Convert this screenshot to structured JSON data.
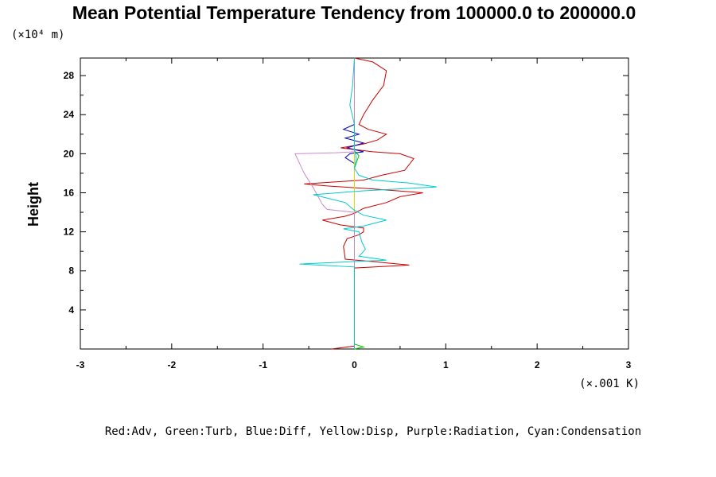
{
  "chart_data": {
    "type": "line",
    "title": "Mean Potential Temperature Tendency from 100000.0 to 200000.0",
    "y_unit_label": "(×10⁴ m)",
    "ylabel": "Height",
    "x_unit_label": "(×.001 K)",
    "legend_text": "Red:Adv, Green:Turb, Blue:Diff, Yellow:Disp, Purple:Radiation, Cyan:Condensation",
    "xlim": [
      -3,
      3
    ],
    "ylim": [
      0,
      29.8
    ],
    "x_ticks": [
      "-3",
      "-2",
      "-1",
      "0",
      "1",
      "2",
      "3"
    ],
    "y_ticks": [
      "4",
      "8",
      "12",
      "16",
      "20",
      "24",
      "28"
    ],
    "grid": false,
    "series": [
      {
        "name": "Adv",
        "color": "#cc0000",
        "points": [
          [
            -0.25,
            0
          ],
          [
            0,
            0.3
          ],
          [
            0,
            8.3
          ],
          [
            0.6,
            8.6
          ],
          [
            0.15,
            9.0
          ],
          [
            -0.1,
            9.2
          ],
          [
            -0.12,
            10.5
          ],
          [
            -0.08,
            11.3
          ],
          [
            0.05,
            11.7
          ],
          [
            0.1,
            12.0
          ],
          [
            0.1,
            12.4
          ],
          [
            -0.15,
            12.7
          ],
          [
            -0.35,
            13.2
          ],
          [
            -0.1,
            13.6
          ],
          [
            0,
            13.9
          ],
          [
            0.1,
            14.4
          ],
          [
            0.35,
            15.0
          ],
          [
            0.5,
            15.6
          ],
          [
            0.75,
            16.0
          ],
          [
            0.2,
            16.4
          ],
          [
            -0.3,
            16.7
          ],
          [
            -0.55,
            16.9
          ],
          [
            0.1,
            17.3
          ],
          [
            0.3,
            17.8
          ],
          [
            0.55,
            18.3
          ],
          [
            0.65,
            19.5
          ],
          [
            0.5,
            20.0
          ],
          [
            0.2,
            20.2
          ],
          [
            -0.15,
            20.6
          ],
          [
            0.1,
            21.0
          ],
          [
            0.25,
            21.4
          ],
          [
            0.35,
            22.0
          ],
          [
            0.15,
            22.5
          ],
          [
            0.05,
            23.0
          ],
          [
            0.1,
            24.0
          ],
          [
            0.2,
            25.5
          ],
          [
            0.32,
            27.0
          ],
          [
            0.35,
            28.5
          ],
          [
            0.2,
            29.4
          ],
          [
            0,
            29.8
          ]
        ]
      },
      {
        "name": "Turb",
        "color": "#00cc00",
        "points": [
          [
            0,
            0
          ],
          [
            0.1,
            0.2
          ],
          [
            0,
            0.5
          ],
          [
            0,
            18.5
          ],
          [
            0.03,
            19.3
          ],
          [
            0.05,
            19.8
          ],
          [
            0,
            20.3
          ],
          [
            0,
            29.8
          ]
        ]
      },
      {
        "name": "Diff",
        "color": "#0000aa",
        "points": [
          [
            0,
            0
          ],
          [
            0,
            19.0
          ],
          [
            -0.1,
            19.6
          ],
          [
            -0.05,
            20.0
          ],
          [
            0.1,
            20.2
          ],
          [
            -0.08,
            20.6
          ],
          [
            0.1,
            21.1
          ],
          [
            -0.1,
            21.6
          ],
          [
            0.05,
            22.0
          ],
          [
            -0.12,
            22.5
          ],
          [
            0,
            23.0
          ],
          [
            0,
            29.8
          ]
        ]
      },
      {
        "name": "Disp",
        "color": "#dddd00",
        "points": [
          [
            0,
            0
          ],
          [
            0,
            29.8
          ]
        ]
      },
      {
        "name": "Radiation",
        "color": "#cc88cc",
        "points": [
          [
            0,
            0
          ],
          [
            0,
            14.0
          ],
          [
            -0.3,
            14.3
          ],
          [
            -0.35,
            14.8
          ],
          [
            -0.45,
            16.5
          ],
          [
            -0.55,
            18.0
          ],
          [
            -0.65,
            20.0
          ],
          [
            -0.2,
            20.1
          ],
          [
            0,
            20.2
          ],
          [
            0,
            29.8
          ]
        ]
      },
      {
        "name": "Condensation",
        "color": "#00cccc",
        "points": [
          [
            0,
            0
          ],
          [
            0,
            8.4
          ],
          [
            -0.6,
            8.7
          ],
          [
            0.35,
            9.1
          ],
          [
            0.05,
            9.5
          ],
          [
            0.12,
            10.2
          ],
          [
            0.08,
            11.0
          ],
          [
            0.05,
            12.0
          ],
          [
            -0.12,
            12.3
          ],
          [
            0.1,
            12.6
          ],
          [
            0.35,
            13.2
          ],
          [
            0.1,
            13.7
          ],
          [
            0,
            14.2
          ],
          [
            -0.1,
            15.0
          ],
          [
            -0.45,
            15.8
          ],
          [
            0.1,
            16.2
          ],
          [
            0.9,
            16.6
          ],
          [
            0.6,
            17.0
          ],
          [
            0.2,
            17.3
          ],
          [
            0.05,
            17.8
          ],
          [
            0,
            18.5
          ],
          [
            0.02,
            19.5
          ],
          [
            0,
            20.5
          ],
          [
            0,
            23.0
          ],
          [
            -0.05,
            25.0
          ],
          [
            -0.02,
            27.0
          ],
          [
            0,
            29.8
          ]
        ]
      }
    ]
  }
}
